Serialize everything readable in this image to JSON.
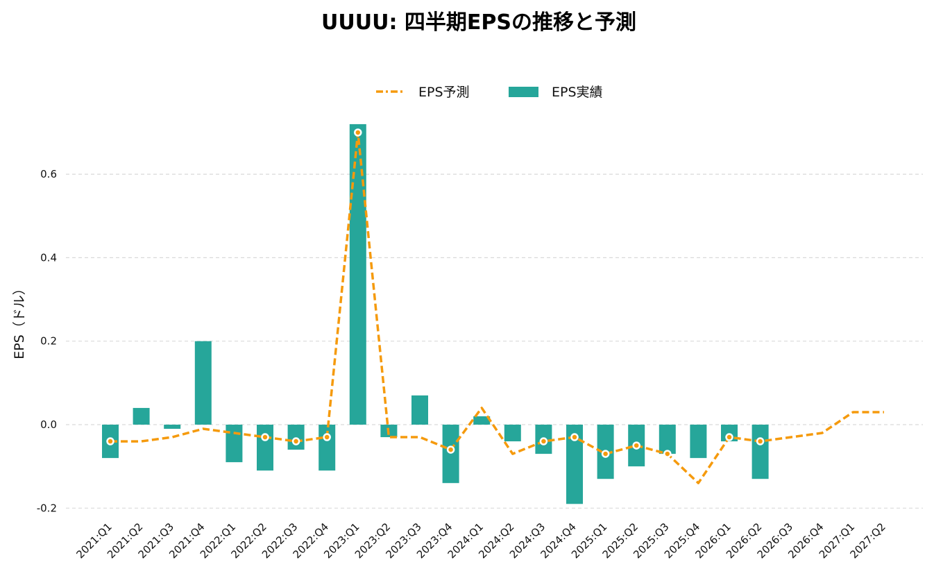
{
  "chart_data": {
    "type": "bar",
    "title": "UUUU: 四半期EPSの推移と予測",
    "xlabel": "",
    "ylabel": "EPS（ドル）",
    "ylim": [
      -0.22,
      0.72
    ],
    "yticks": [
      -0.2,
      0.0,
      0.2,
      0.4,
      0.6
    ],
    "grid": "horizontal-dashed",
    "legend_placement": "top-center",
    "categories": [
      "2021:Q1",
      "2021:Q2",
      "2021:Q3",
      "2021:Q4",
      "2022:Q1",
      "2022:Q2",
      "2022:Q3",
      "2022:Q4",
      "2023:Q1",
      "2023:Q2",
      "2023:Q3",
      "2023:Q4",
      "2024:Q1",
      "2024:Q2",
      "2024:Q3",
      "2024:Q4",
      "2025:Q1",
      "2025:Q2",
      "2025:Q3",
      "2025:Q4",
      "2026:Q1",
      "2026:Q2",
      "2026:Q3",
      "2026:Q4",
      "2027:Q1",
      "2027:Q2"
    ],
    "series": [
      {
        "name": "EPS予測",
        "type": "line",
        "color": "#f59a0d",
        "values": [
          -0.04,
          -0.04,
          -0.03,
          -0.01,
          null,
          -0.03,
          -0.04,
          -0.03,
          0.7,
          -0.03,
          -0.03,
          -0.06,
          0.04,
          -0.07,
          -0.04,
          -0.03,
          -0.07,
          -0.05,
          -0.07,
          -0.14,
          -0.03,
          -0.04,
          -0.03,
          -0.02,
          0.03,
          0.03
        ],
        "marked": [
          true,
          false,
          false,
          false,
          false,
          true,
          true,
          true,
          true,
          false,
          false,
          true,
          false,
          false,
          true,
          true,
          true,
          true,
          true,
          false,
          true,
          true,
          false,
          false,
          false,
          false
        ]
      },
      {
        "name": "EPS実績",
        "type": "bar",
        "color": "#26a69a",
        "values": [
          -0.08,
          0.04,
          -0.01,
          0.2,
          -0.09,
          -0.11,
          -0.06,
          -0.11,
          0.72,
          -0.03,
          0.07,
          -0.14,
          0.02,
          -0.04,
          -0.07,
          -0.19,
          -0.13,
          -0.1,
          -0.07,
          -0.08,
          -0.04,
          -0.13,
          null,
          null,
          null,
          null
        ]
      }
    ]
  }
}
